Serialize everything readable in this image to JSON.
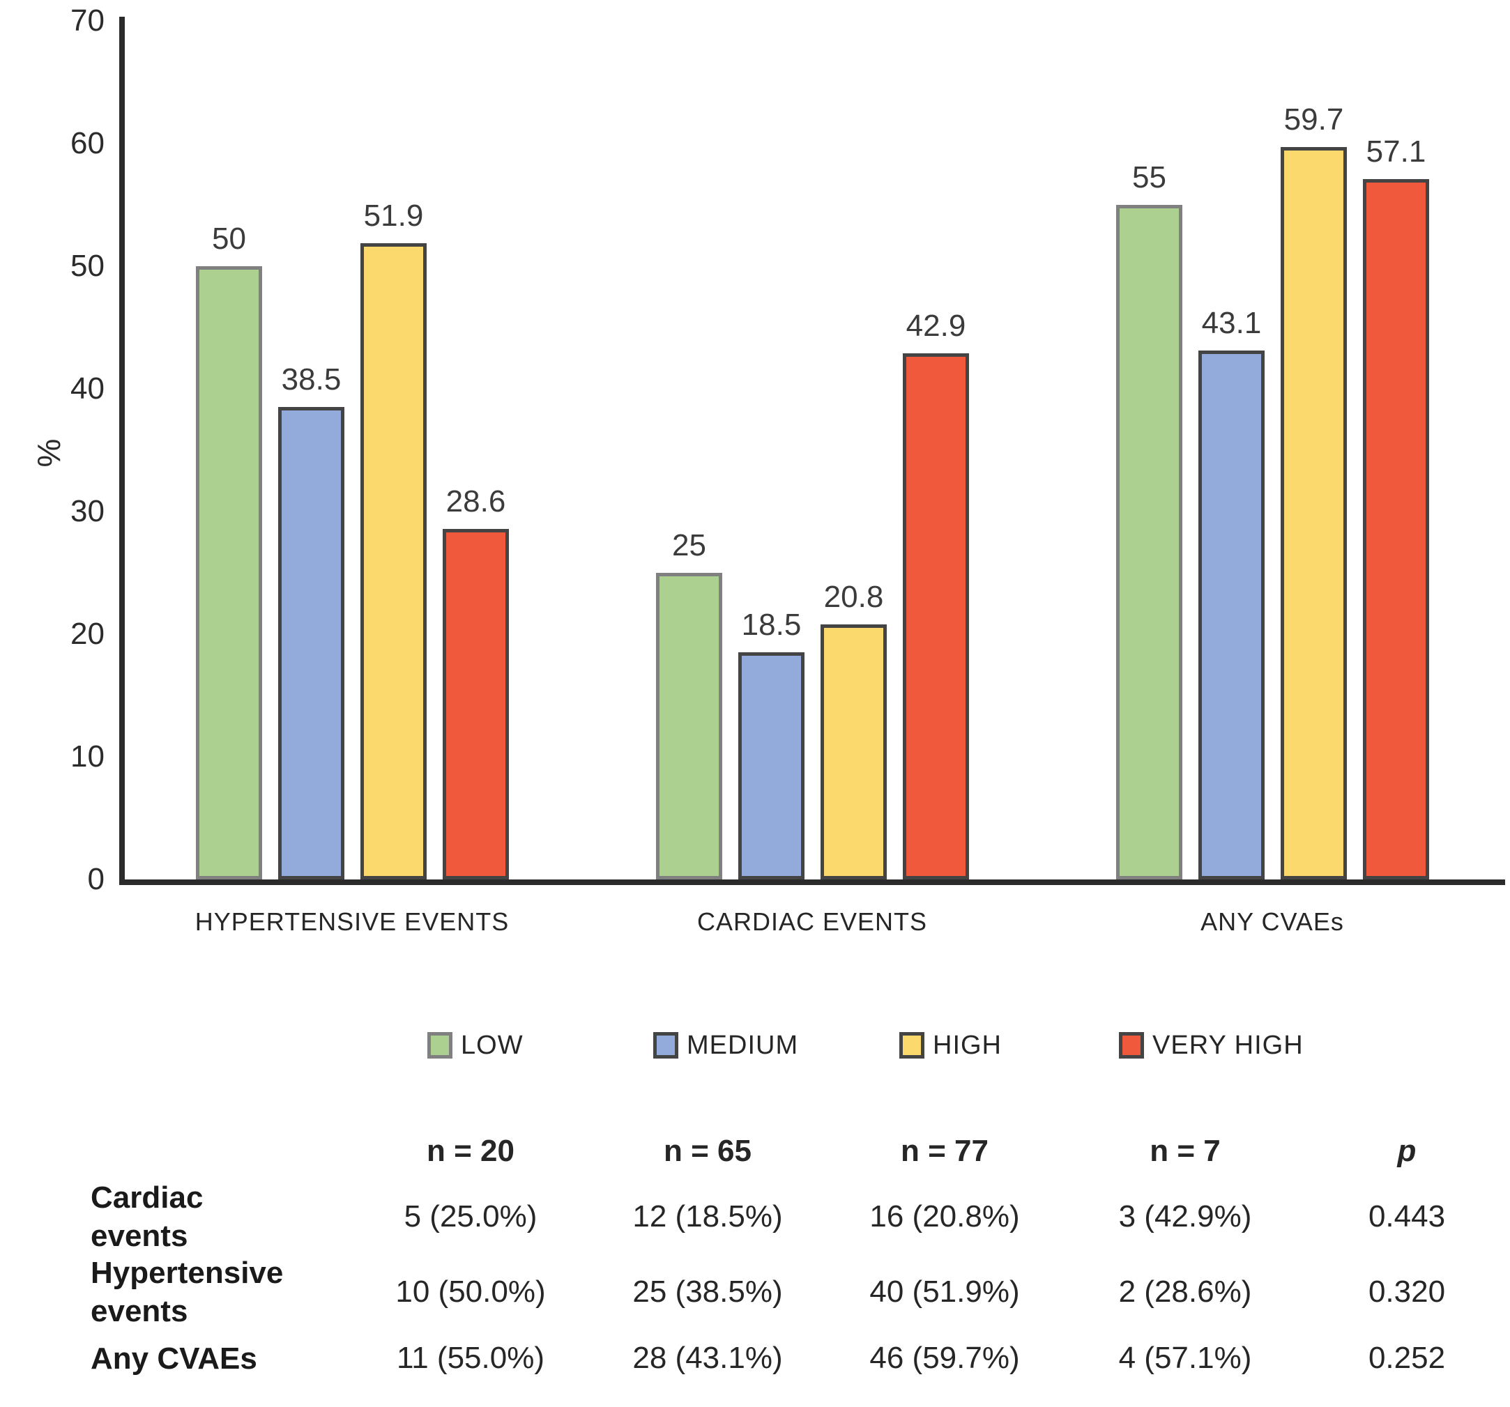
{
  "chart_data": {
    "type": "bar",
    "title": "",
    "categories": [
      "HYPERTENSIVE EVENTS",
      "CARDIAC EVENTS",
      "ANY CVAEs"
    ],
    "series": [
      {
        "name": "LOW",
        "values": [
          50,
          25,
          55
        ],
        "labels": [
          "50",
          "25",
          "55"
        ],
        "fill": "#abd08f",
        "border": "#808080"
      },
      {
        "name": "MEDIUM",
        "values": [
          38.5,
          18.5,
          43.1
        ],
        "labels": [
          "38.5",
          "18.5",
          "43.1"
        ],
        "fill": "#92abdb",
        "border": "#444444"
      },
      {
        "name": "HIGH",
        "values": [
          51.9,
          20.8,
          59.7
        ],
        "labels": [
          "51.9",
          "20.8",
          "59.7"
        ],
        "fill": "#fbd96d",
        "border": "#444444"
      },
      {
        "name": "VERY HIGH",
        "values": [
          28.6,
          42.9,
          57.1
        ],
        "labels": [
          "28.6",
          "42.9",
          "57.1"
        ],
        "fill": "#f0593c",
        "border": "#444444"
      }
    ],
    "xlabel": "",
    "ylabel": "%",
    "ylim": [
      0,
      70
    ],
    "yticks": [
      0,
      10,
      20,
      30,
      40,
      50,
      60,
      70
    ],
    "grid": false,
    "legend_position": "bottom"
  },
  "legend": {
    "items": [
      "LOW",
      "MEDIUM",
      "HIGH",
      "VERY HIGH"
    ]
  },
  "table": {
    "headers": [
      "n = 20",
      "n = 65",
      "n = 77",
      "n = 7",
      "p"
    ],
    "rows": [
      {
        "label": "Cardiac\nevents",
        "values": [
          "5 (25.0%)",
          "12 (18.5%)",
          "16 (20.8%)",
          "3 (42.9%)",
          "0.443"
        ]
      },
      {
        "label": "Hypertensive\nevents",
        "values": [
          "10 (50.0%)",
          "25 (38.5%)",
          "40 (51.9%)",
          "2 (28.6%)",
          "0.320"
        ]
      },
      {
        "label": "Any CVAEs",
        "values": [
          "11 (55.0%)",
          "28 (43.1%)",
          "46 (59.7%)",
          "4 (57.1%)",
          "0.252"
        ]
      }
    ]
  }
}
